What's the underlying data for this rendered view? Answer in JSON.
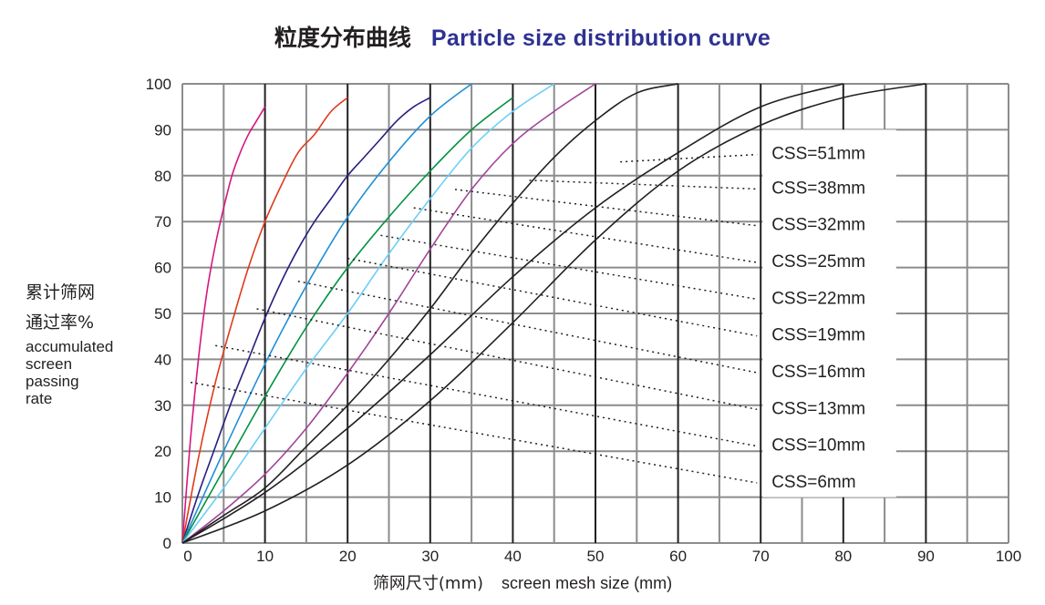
{
  "title_zh": "粒度分布曲线",
  "title_en": "Particle size distribution curve",
  "ylabel_zh_1": "累计筛网",
  "ylabel_zh_2": "通过率%",
  "ylabel_en": [
    "accumulated",
    "screen",
    "passing",
    "rate"
  ],
  "xlabel_zh": "筛网尺寸(mm)",
  "xlabel_en": "screen mesh size  (mm)",
  "chart_data": {
    "type": "line",
    "xlim": [
      0,
      100
    ],
    "ylim": [
      0,
      100
    ],
    "x_ticks": [
      0,
      10,
      20,
      30,
      40,
      50,
      60,
      70,
      80,
      90,
      100
    ],
    "y_ticks": [
      0,
      10,
      20,
      30,
      40,
      50,
      60,
      70,
      80,
      90,
      100
    ],
    "grid": true,
    "legend_position": "right",
    "series": [
      {
        "name": "CSS=6mm",
        "color": "#d6177f",
        "x": [
          0,
          1,
          2,
          3,
          4,
          5,
          6,
          7,
          8,
          9,
          10
        ],
        "y": [
          0,
          23,
          41,
          55,
          65,
          73,
          80,
          85,
          89,
          92,
          95
        ],
        "label_from": [
          1,
          35
        ]
      },
      {
        "name": "CSS=10mm",
        "color": "#e03a1c",
        "x": [
          0,
          2,
          4,
          6,
          8,
          10,
          12,
          14,
          16,
          18,
          20
        ],
        "y": [
          0,
          19,
          35,
          48,
          60,
          70,
          78,
          85,
          89,
          94,
          97
        ],
        "label_from": [
          4,
          43
        ]
      },
      {
        "name": "CSS=13mm",
        "color": "#262080",
        "x": [
          0,
          2,
          4,
          6,
          8,
          10,
          12,
          14,
          16,
          18,
          20,
          22,
          24,
          26,
          28,
          30
        ],
        "y": [
          0,
          11,
          21,
          31,
          40,
          49,
          57,
          64,
          70,
          75,
          80,
          84,
          88,
          92,
          95,
          97
        ],
        "label_from": [
          9,
          51
        ]
      },
      {
        "name": "CSS=16mm",
        "color": "#1e8fd5",
        "x": [
          0,
          5,
          10,
          15,
          20,
          25,
          30,
          35
        ],
        "y": [
          0,
          20,
          39,
          56,
          71,
          83,
          93,
          100
        ],
        "label_from": [
          14,
          57
        ]
      },
      {
        "name": "CSS=19mm",
        "color": "#00923f",
        "x": [
          0,
          5,
          10,
          15,
          20,
          25,
          30,
          35,
          40
        ],
        "y": [
          0,
          16,
          32,
          47,
          60,
          71,
          81,
          90,
          97
        ],
        "label_from": [
          20,
          62
        ]
      },
      {
        "name": "CSS=22mm",
        "color": "#6dcff6",
        "x": [
          0,
          5,
          10,
          15,
          20,
          25,
          30,
          35,
          40,
          45
        ],
        "y": [
          0,
          12,
          25,
          38,
          50,
          63,
          75,
          86,
          94,
          100
        ],
        "label_from": [
          24,
          67
        ]
      },
      {
        "name": "CSS=25mm",
        "color": "#a1469a",
        "x": [
          0,
          5,
          10,
          15,
          20,
          25,
          30,
          35,
          40,
          45,
          50
        ],
        "y": [
          0,
          7,
          15,
          25,
          37,
          50,
          64,
          77,
          87,
          94,
          100
        ],
        "label_from": [
          28,
          73
        ]
      },
      {
        "name": "CSS=32mm",
        "color": "#231f20",
        "x": [
          0,
          5,
          10,
          15,
          20,
          25,
          30,
          35,
          40,
          45,
          50,
          55,
          60
        ],
        "y": [
          0,
          6,
          12,
          21,
          30,
          40,
          51,
          63,
          74,
          84,
          92,
          98,
          100
        ],
        "label_from": [
          33,
          77
        ]
      },
      {
        "name": "CSS=38mm",
        "color": "#231f20",
        "x": [
          0,
          10,
          20,
          30,
          40,
          50,
          60,
          70,
          80
        ],
        "y": [
          0,
          11,
          25,
          41,
          58,
          73,
          85,
          95,
          100
        ],
        "label_from": [
          42,
          79
        ]
      },
      {
        "name": "CSS=51mm",
        "color": "#231f20",
        "x": [
          0,
          10,
          20,
          30,
          40,
          50,
          60,
          70,
          80,
          90
        ],
        "y": [
          0,
          7,
          17,
          31,
          48,
          66,
          81,
          91,
          97,
          100
        ],
        "label_from": [
          53,
          83
        ]
      }
    ]
  }
}
